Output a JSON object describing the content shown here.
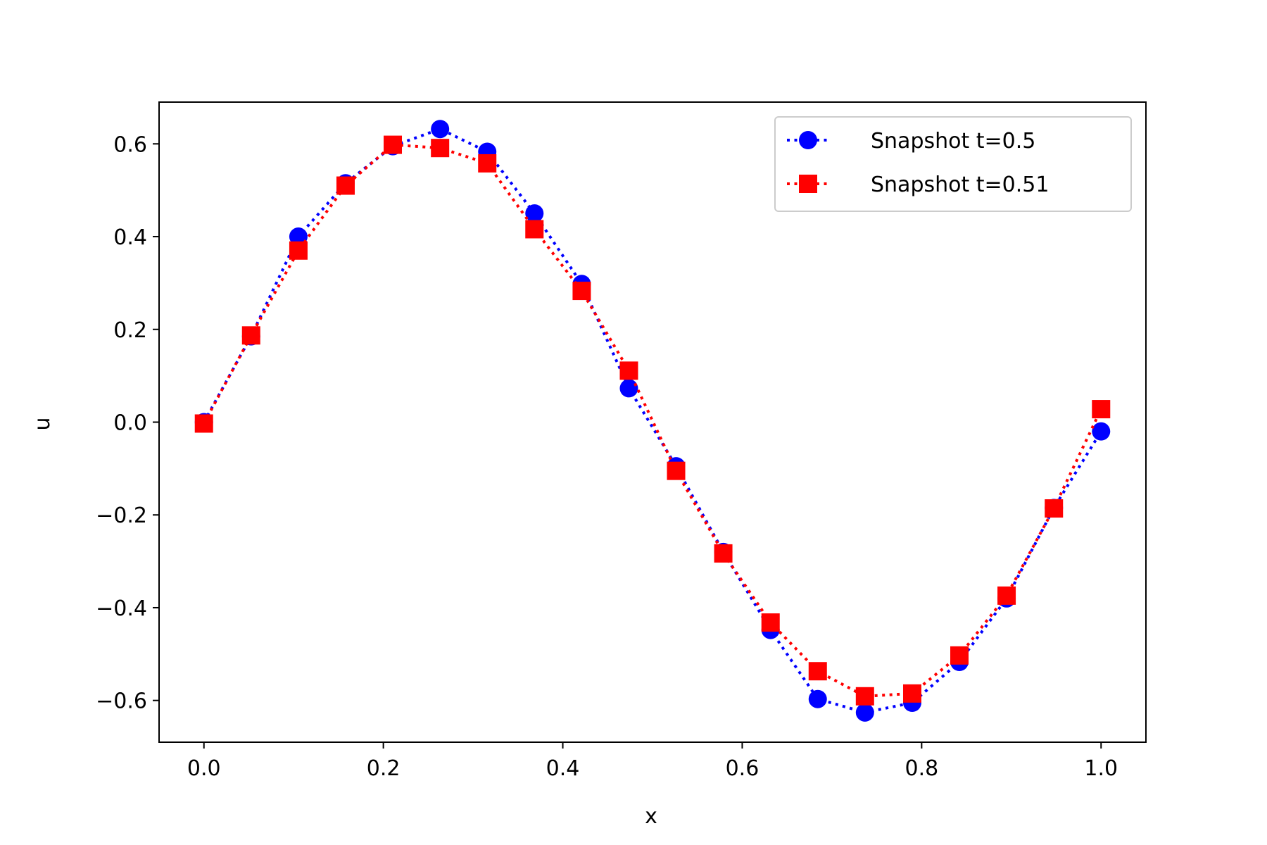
{
  "chart_data": {
    "type": "line",
    "title": "",
    "xlabel": "x",
    "ylabel": "u",
    "xlim": [
      -0.05,
      1.05
    ],
    "ylim": [
      -0.69,
      0.69
    ],
    "xticks": [
      0.0,
      0.2,
      0.4,
      0.6,
      0.8,
      1.0
    ],
    "xtick_labels": [
      "0.0",
      "0.2",
      "0.4",
      "0.6",
      "0.8",
      "1.0"
    ],
    "yticks": [
      -0.6,
      -0.4,
      -0.2,
      0.0,
      0.2,
      0.4,
      0.6
    ],
    "ytick_labels": [
      "−0.6",
      "−0.4",
      "−0.2",
      "0.0",
      "0.2",
      "0.4",
      "0.6"
    ],
    "grid": false,
    "legend_position": "top-right",
    "x": [
      0.0,
      0.0526,
      0.1053,
      0.1579,
      0.2105,
      0.2632,
      0.3158,
      0.3684,
      0.4211,
      0.4737,
      0.5263,
      0.5789,
      0.6316,
      0.6842,
      0.7368,
      0.7895,
      0.8421,
      0.8947,
      0.9474,
      1.0
    ],
    "series": [
      {
        "name": "Snapshot t=0.5",
        "color": "#0000ff",
        "marker": "circle",
        "linestyle": "dotted",
        "values": [
          0.0,
          0.185,
          0.4,
          0.515,
          0.595,
          0.632,
          0.583,
          0.45,
          0.298,
          0.073,
          -0.095,
          -0.28,
          -0.448,
          -0.597,
          -0.626,
          -0.605,
          -0.517,
          -0.38,
          -0.185,
          -0.02
        ]
      },
      {
        "name": "Snapshot t=0.51",
        "color": "#ff0000",
        "marker": "square",
        "linestyle": "dotted",
        "values": [
          -0.003,
          0.187,
          0.37,
          0.51,
          0.598,
          0.591,
          0.558,
          0.416,
          0.283,
          0.111,
          -0.105,
          -0.283,
          -0.432,
          -0.537,
          -0.591,
          -0.585,
          -0.503,
          -0.374,
          -0.186,
          0.028
        ]
      }
    ]
  }
}
